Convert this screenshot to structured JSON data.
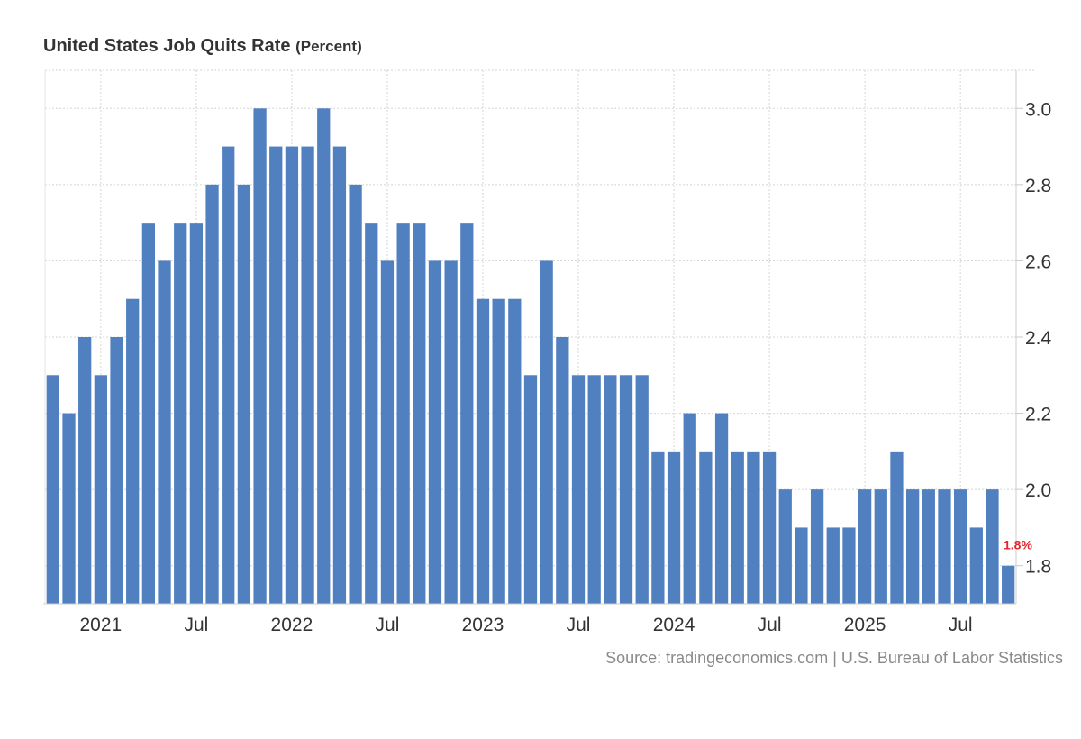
{
  "header": {
    "title": "United States Job Quits Rate",
    "unit": "(Percent)"
  },
  "footer": {
    "source": "Source: tradingeconomics.com | U.S. Bureau of Labor Statistics"
  },
  "colors": {
    "bar": "#5180c0",
    "last_label": "#e8242b",
    "grid": "#d5d5d5",
    "axis_text": "#333333"
  },
  "chart_data": {
    "type": "bar",
    "title": "United States Job Quits Rate",
    "unit": "Percent",
    "xlabel": "",
    "ylabel": "",
    "ylim": [
      1.7,
      3.1
    ],
    "y_ticks": [
      1.8,
      2.0,
      2.2,
      2.4,
      2.6,
      2.8,
      3.0
    ],
    "y_axis_side": "right",
    "grid": true,
    "x_tick_labels": [
      {
        "label": "2021",
        "index": 3
      },
      {
        "label": "Jul",
        "index": 9
      },
      {
        "label": "2022",
        "index": 15
      },
      {
        "label": "Jul",
        "index": 21
      },
      {
        "label": "2023",
        "index": 27
      },
      {
        "label": "Jul",
        "index": 33
      },
      {
        "label": "2024",
        "index": 39
      },
      {
        "label": "Jul",
        "index": 45
      },
      {
        "label": "2025",
        "index": 51
      },
      {
        "label": "Jul",
        "index": 57
      }
    ],
    "values": [
      2.3,
      2.2,
      2.4,
      2.3,
      2.4,
      2.5,
      2.7,
      2.6,
      2.7,
      2.7,
      2.8,
      2.9,
      2.8,
      3.0,
      2.9,
      2.9,
      2.9,
      3.0,
      2.9,
      2.8,
      2.7,
      2.6,
      2.7,
      2.7,
      2.6,
      2.6,
      2.7,
      2.5,
      2.5,
      2.5,
      2.3,
      2.6,
      2.4,
      2.3,
      2.3,
      2.3,
      2.3,
      2.3,
      2.1,
      2.1,
      2.2,
      2.1,
      2.2,
      2.1,
      2.1,
      2.1,
      2.0,
      1.9,
      2.0,
      1.9,
      1.9,
      2.0,
      2.0,
      2.1,
      2.0,
      2.0,
      2.0,
      2.0,
      1.9,
      2.0,
      1.8
    ],
    "last_value_label": "1.8%"
  }
}
